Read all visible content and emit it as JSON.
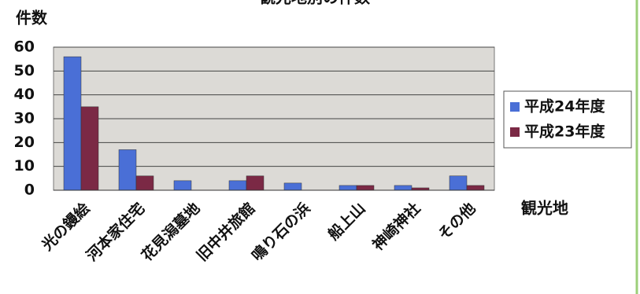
{
  "chart_data": {
    "type": "bar",
    "title": "観光地別の件数",
    "y_label": "件数",
    "x_label": "観光地",
    "categories": [
      "光の鏝絵",
      "河本家住宅",
      "花見潟墓地",
      "旧中井旅館",
      "鳴り石の浜",
      "船上山",
      "神崎神社",
      "その他"
    ],
    "series": [
      {
        "name": "平成24年度",
        "color": "#4a6fd6",
        "values": [
          56,
          17,
          4,
          4,
          3,
          2,
          2,
          6
        ]
      },
      {
        "name": "平成23年度",
        "color": "#7b2945",
        "values": [
          35,
          6,
          0,
          6,
          0,
          2,
          1,
          2
        ]
      }
    ],
    "ylim": [
      0,
      60
    ],
    "yticks": [
      0,
      10,
      20,
      30,
      40,
      50,
      60
    ],
    "grid": true,
    "legend": "right"
  }
}
